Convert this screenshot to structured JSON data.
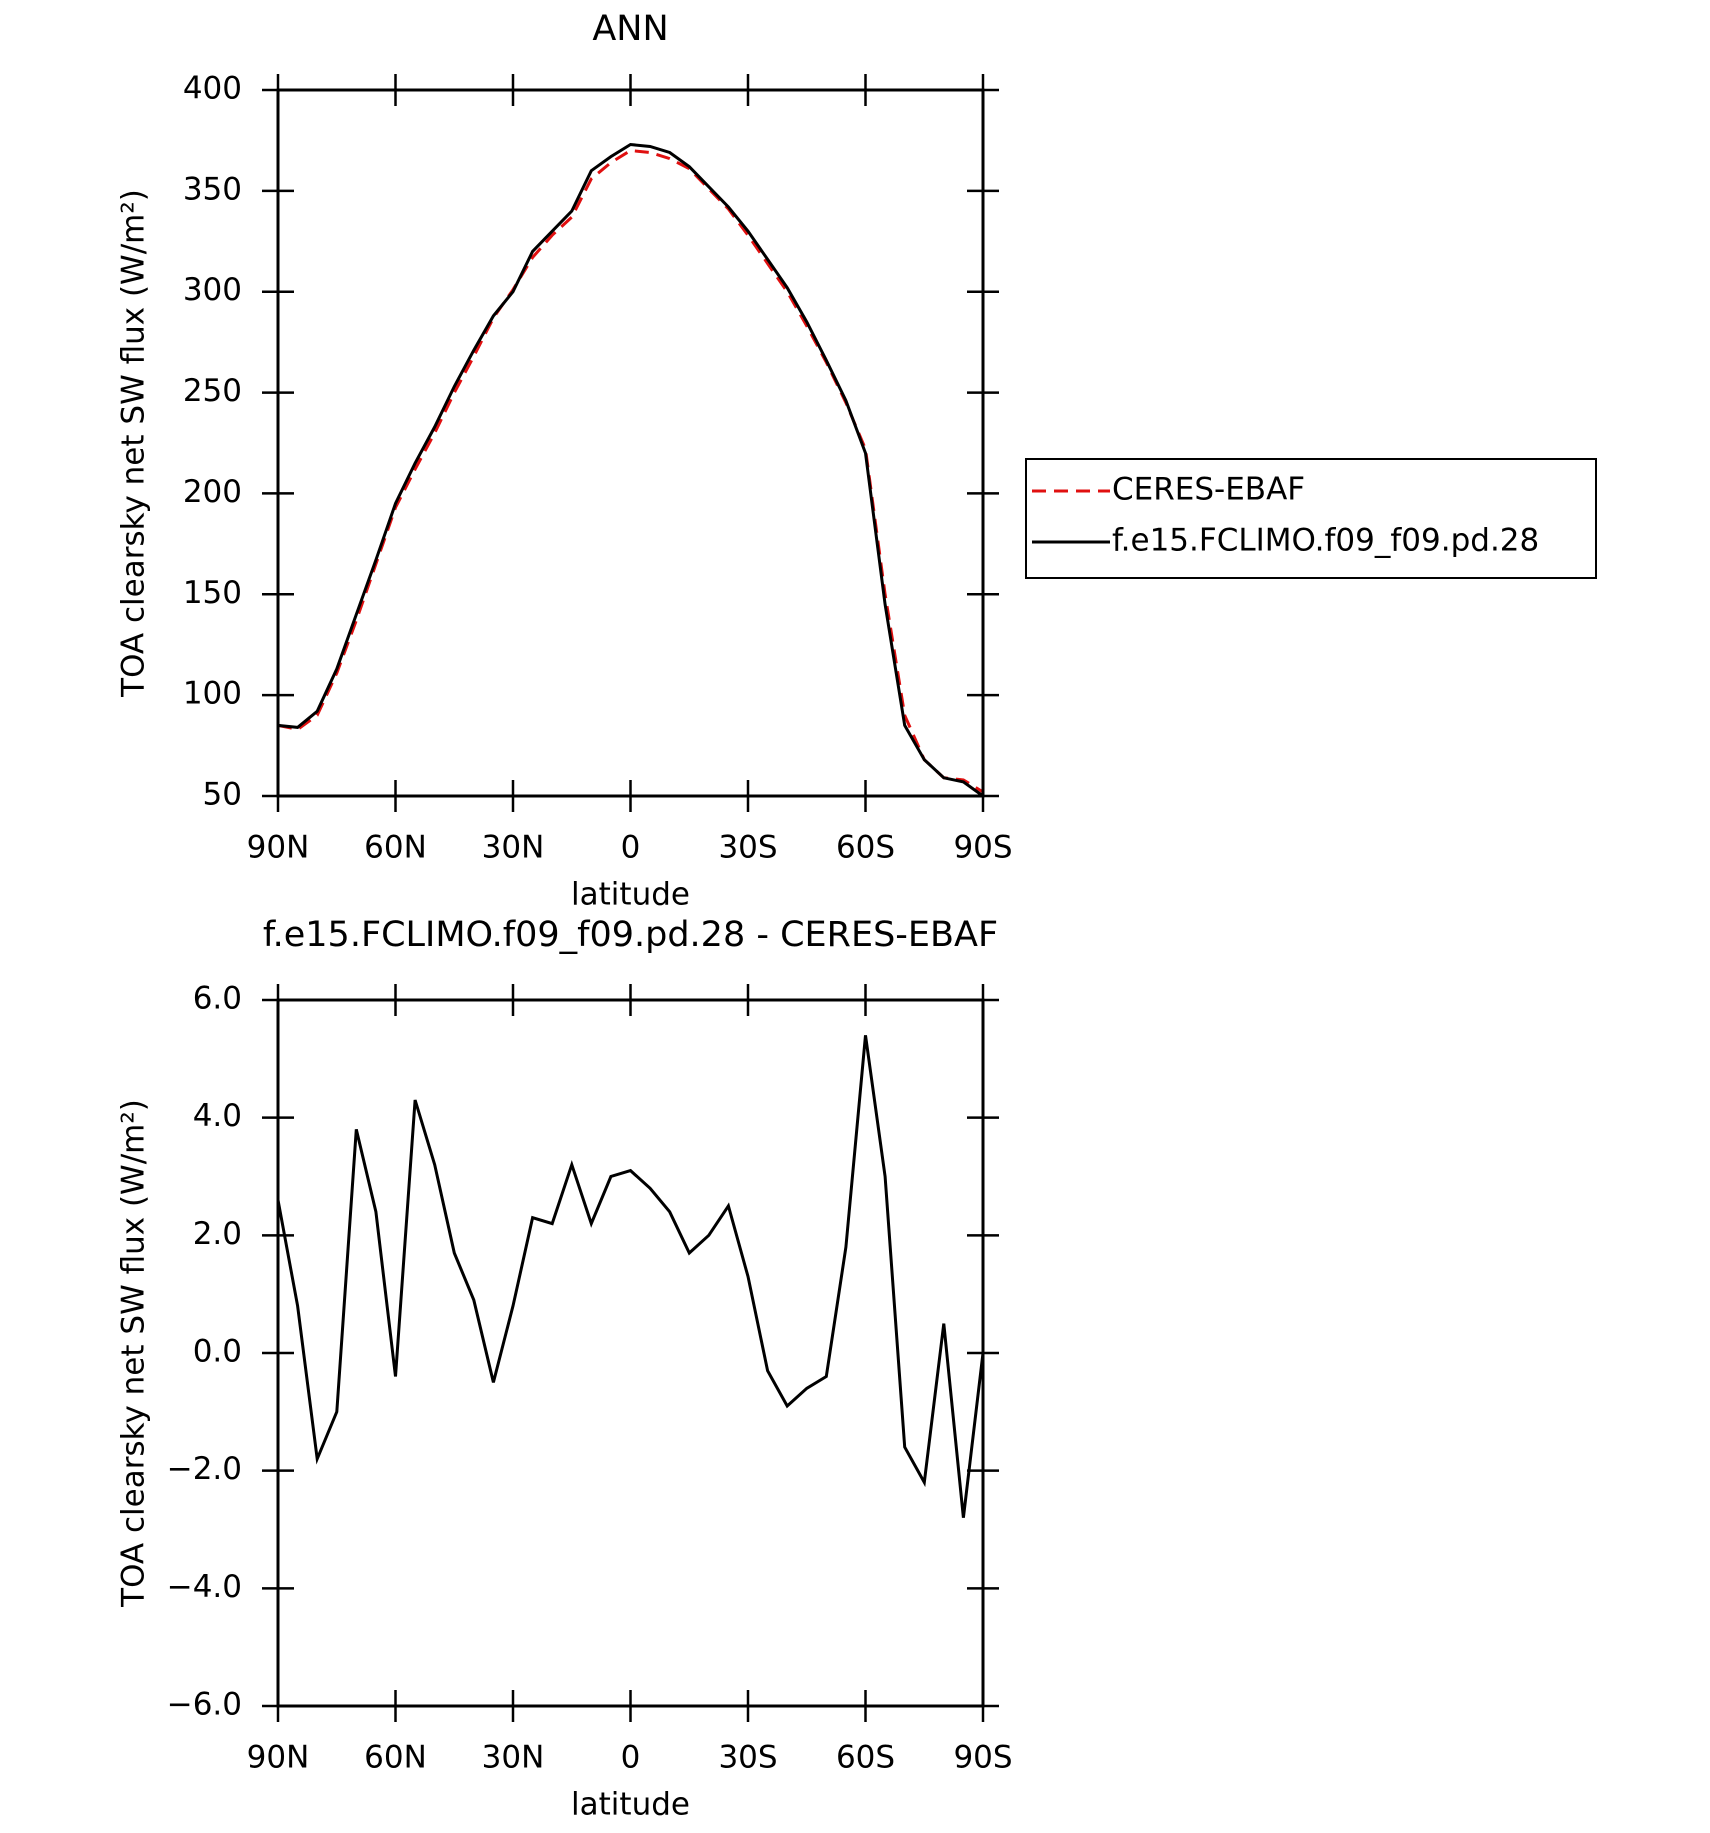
{
  "chart_data": [
    {
      "type": "line",
      "title": "ANN",
      "x_label": "latitude",
      "y_label": "TOA clearsky net SW flux (W/m²)",
      "x": [
        90,
        85,
        80,
        75,
        70,
        65,
        60,
        55,
        50,
        45,
        40,
        35,
        30,
        25,
        20,
        15,
        10,
        5,
        0,
        -5,
        -10,
        -15,
        -20,
        -25,
        -30,
        -35,
        -40,
        -45,
        -50,
        -55,
        -60,
        -65,
        -70,
        -75,
        -80,
        -85,
        -90
      ],
      "xlim": [
        90,
        -90
      ],
      "xticks": [
        {
          "value": 90,
          "label": "90N"
        },
        {
          "value": 60,
          "label": "60N"
        },
        {
          "value": 30,
          "label": "30N"
        },
        0,
        {
          "value": -30,
          "label": "30S"
        },
        {
          "value": -60,
          "label": "60S"
        },
        {
          "value": -90,
          "label": "90S"
        }
      ],
      "ylim": [
        50,
        400
      ],
      "yticks": [
        50,
        100,
        150,
        200,
        250,
        300,
        350,
        400
      ],
      "legend": "right",
      "series": [
        {
          "name": "CERES-EBAF",
          "color": "#e01010",
          "style": "dashed",
          "values": [
            85,
            83,
            90,
            111,
            137,
            165,
            193,
            212,
            230,
            250,
            268,
            287,
            301,
            317,
            328,
            337,
            356,
            364,
            370,
            369,
            366,
            361,
            351,
            341,
            328,
            314,
            300,
            283,
            265,
            245,
            222,
            150,
            90,
            68,
            59,
            58,
            52
          ]
        },
        {
          "name": "f.e15.FCLIMO.f09_f09.pd.28",
          "color": "#000000",
          "style": "solid",
          "values": [
            85,
            84,
            92,
            113,
            140,
            167,
            195,
            215,
            233,
            253,
            271,
            288,
            300,
            320,
            330,
            340,
            360,
            367,
            373,
            372,
            369,
            362,
            352,
            342,
            330,
            316,
            302,
            285,
            266,
            246,
            220,
            145,
            85,
            68,
            59,
            57,
            50
          ]
        }
      ]
    },
    {
      "type": "line",
      "title": "f.e15.FCLIMO.f09_f09.pd.28 - CERES-EBAF",
      "x_label": "latitude",
      "y_label": "TOA clearsky net SW flux (W/m²)",
      "x": [
        90,
        85,
        80,
        75,
        70,
        65,
        60,
        55,
        50,
        45,
        40,
        35,
        30,
        25,
        20,
        15,
        10,
        5,
        0,
        -5,
        -10,
        -15,
        -20,
        -25,
        -30,
        -35,
        -40,
        -45,
        -50,
        -55,
        -60,
        -65,
        -70,
        -75,
        -80,
        -85,
        -90
      ],
      "xlim": [
        90,
        -90
      ],
      "xticks": [
        {
          "value": 90,
          "label": "90N"
        },
        {
          "value": 60,
          "label": "60N"
        },
        {
          "value": 30,
          "label": "30N"
        },
        0,
        {
          "value": -30,
          "label": "30S"
        },
        {
          "value": -60,
          "label": "60S"
        },
        {
          "value": -90,
          "label": "90S"
        }
      ],
      "ylim": [
        -6,
        6
      ],
      "yticks": [
        {
          "value": -6,
          "label": "−6.0"
        },
        {
          "value": -4,
          "label": "−4.0"
        },
        {
          "value": -2,
          "label": "−2.0"
        },
        {
          "value": 0,
          "label": "0.0"
        },
        {
          "value": 2,
          "label": "2.0"
        },
        {
          "value": 4,
          "label": "4.0"
        },
        {
          "value": 6,
          "label": "6.0"
        }
      ],
      "color": "#000000",
      "values": [
        2.6,
        0.8,
        -1.8,
        -1.0,
        3.8,
        2.4,
        -0.4,
        4.3,
        3.2,
        1.7,
        0.9,
        -0.5,
        0.8,
        2.3,
        2.2,
        3.2,
        2.2,
        3.0,
        3.1,
        2.8,
        2.4,
        1.7,
        2.0,
        2.5,
        1.3,
        -0.3,
        -0.9,
        -0.6,
        -0.4,
        1.8,
        5.4,
        3.0,
        -1.6,
        -2.2,
        0.5,
        -2.8,
        0.0
      ]
    }
  ]
}
